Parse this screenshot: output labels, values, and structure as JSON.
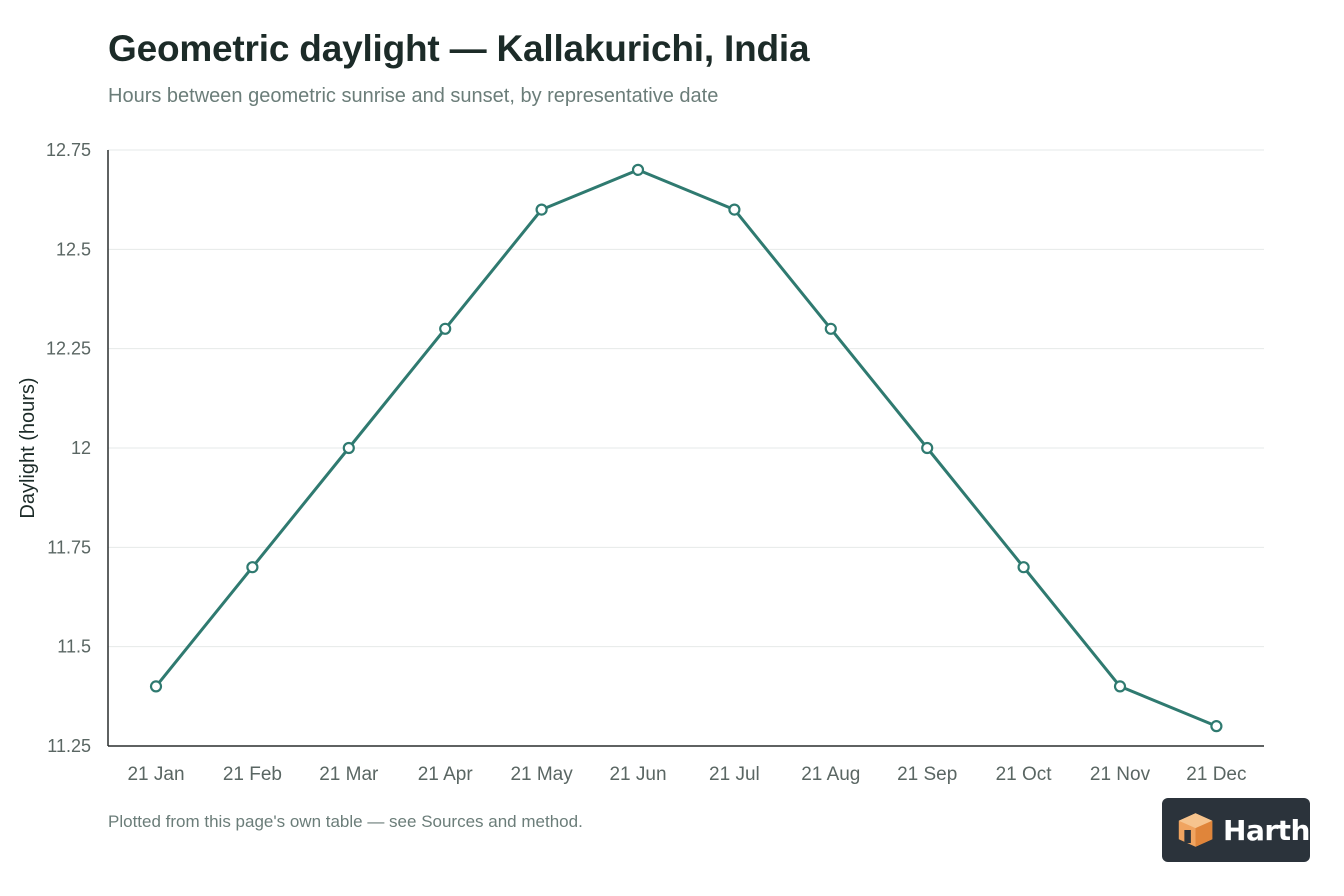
{
  "header": {
    "title": "Geometric daylight — Kallakurichi, India",
    "subtitle": "Hours between geometric sunrise and sunset, by representative date"
  },
  "footer": {
    "note": "Plotted from this page's own table — see Sources and method.",
    "brand": "Harth"
  },
  "colors": {
    "line": "#2f7a70",
    "marker_fill": "#ffffff",
    "grid": "#e6e9e8",
    "axis": "#2a2f2e",
    "tick_label": "#5a6663",
    "badge_bg": "#2b333b",
    "logo_orange": "#f0a460"
  },
  "chart_data": {
    "type": "line",
    "title": "Geometric daylight — Kallakurichi, India",
    "subtitle": "Hours between geometric sunrise and sunset, by representative date",
    "xlabel": "",
    "ylabel": "Daylight (hours)",
    "categories": [
      "21 Jan",
      "21 Feb",
      "21 Mar",
      "21 Apr",
      "21 May",
      "21 Jun",
      "21 Jul",
      "21 Aug",
      "21 Sep",
      "21 Oct",
      "21 Nov",
      "21 Dec"
    ],
    "series": [
      {
        "values": [
          11.4,
          11.7,
          12.0,
          12.3,
          12.6,
          12.7,
          12.6,
          12.3,
          12.0,
          11.7,
          11.4,
          11.3
        ]
      }
    ],
    "ylim": [
      11.25,
      12.75
    ],
    "yticks": [
      11.25,
      11.5,
      11.75,
      12,
      12.25,
      12.5,
      12.75
    ],
    "ytick_labels": [
      "11.25",
      "11.5",
      "11.75",
      "12",
      "12.25",
      "12.5",
      "12.75"
    ],
    "grid": "horizontal",
    "legend": "none",
    "markers": "hollow-circle"
  }
}
